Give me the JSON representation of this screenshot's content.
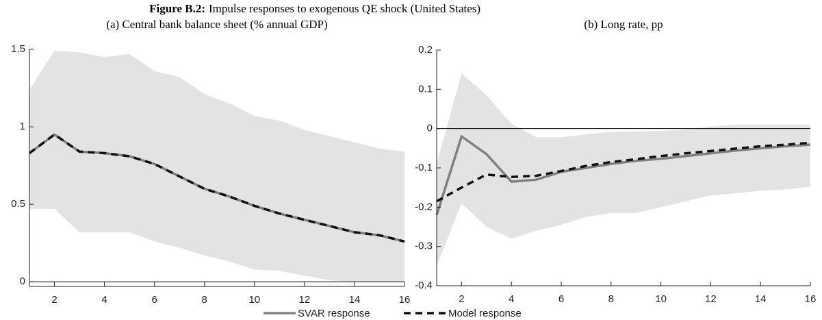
{
  "figure_label": "Figure B.2:",
  "title": "Impulse responses to exogenous QE shock (United States)",
  "chart_data": [
    {
      "type": "line",
      "title": "(a) Central bank balance sheet (% annual GDP)",
      "x": [
        1,
        2,
        3,
        4,
        5,
        6,
        7,
        8,
        9,
        10,
        11,
        12,
        13,
        14,
        15,
        16
      ],
      "xlim": [
        1,
        16
      ],
      "xticks": [
        2,
        4,
        6,
        8,
        10,
        12,
        14,
        16
      ],
      "ylim": [
        -0.03,
        1.5
      ],
      "yticks": [
        0,
        0.5,
        1,
        1.5
      ],
      "hline": 0,
      "band": {
        "color": "#e3e3e3",
        "lower": [
          0.47,
          0.47,
          0.32,
          0.32,
          0.32,
          0.26,
          0.22,
          0.17,
          0.13,
          0.08,
          0.07,
          0.04,
          0.01,
          0.0,
          0.0,
          0.0
        ],
        "upper": [
          1.24,
          1.49,
          1.48,
          1.45,
          1.47,
          1.36,
          1.32,
          1.21,
          1.15,
          1.07,
          1.04,
          0.98,
          0.94,
          0.9,
          0.86,
          0.84
        ]
      },
      "series": [
        {
          "name": "SVAR response",
          "color": "#808080",
          "dash": false,
          "values": [
            0.83,
            0.95,
            0.84,
            0.83,
            0.81,
            0.76,
            0.68,
            0.6,
            0.55,
            0.49,
            0.44,
            0.4,
            0.36,
            0.32,
            0.3,
            0.26
          ]
        },
        {
          "name": "Model response",
          "color": "#111111",
          "dash": true,
          "values": [
            0.83,
            0.95,
            0.84,
            0.83,
            0.81,
            0.76,
            0.68,
            0.6,
            0.55,
            0.49,
            0.44,
            0.4,
            0.36,
            0.32,
            0.3,
            0.26
          ]
        }
      ]
    },
    {
      "type": "line",
      "title": "(b) Long rate, pp",
      "x": [
        1,
        2,
        3,
        4,
        5,
        6,
        7,
        8,
        9,
        10,
        11,
        12,
        13,
        14,
        15,
        16
      ],
      "xlim": [
        1,
        16
      ],
      "xticks": [
        2,
        4,
        6,
        8,
        10,
        12,
        14,
        16
      ],
      "ylim": [
        -0.4,
        0.2
      ],
      "yticks": [
        -0.4,
        -0.3,
        -0.2,
        -0.1,
        0,
        0.1,
        0.2
      ],
      "hline": 0,
      "band": {
        "color": "#e3e3e3",
        "lower": [
          -0.35,
          -0.19,
          -0.25,
          -0.28,
          -0.26,
          -0.245,
          -0.225,
          -0.215,
          -0.215,
          -0.2,
          -0.185,
          -0.17,
          -0.165,
          -0.158,
          -0.155,
          -0.148
        ],
        "upper": [
          -0.09,
          0.14,
          0.085,
          0.012,
          -0.022,
          -0.022,
          -0.015,
          -0.008,
          -0.007,
          -0.006,
          -0.002,
          0.005,
          0.01,
          0.01,
          0.01,
          0.01
        ]
      },
      "series": [
        {
          "name": "SVAR response",
          "color": "#808080",
          "dash": false,
          "values": [
            -0.22,
            -0.02,
            -0.065,
            -0.135,
            -0.13,
            -0.11,
            -0.1,
            -0.09,
            -0.082,
            -0.077,
            -0.07,
            -0.063,
            -0.056,
            -0.05,
            -0.045,
            -0.041
          ]
        },
        {
          "name": "Model response",
          "color": "#111111",
          "dash": true,
          "values": [
            -0.185,
            -0.15,
            -0.117,
            -0.123,
            -0.12,
            -0.108,
            -0.095,
            -0.085,
            -0.078,
            -0.07,
            -0.063,
            -0.057,
            -0.051,
            -0.045,
            -0.041,
            -0.036
          ]
        }
      ]
    }
  ]
}
